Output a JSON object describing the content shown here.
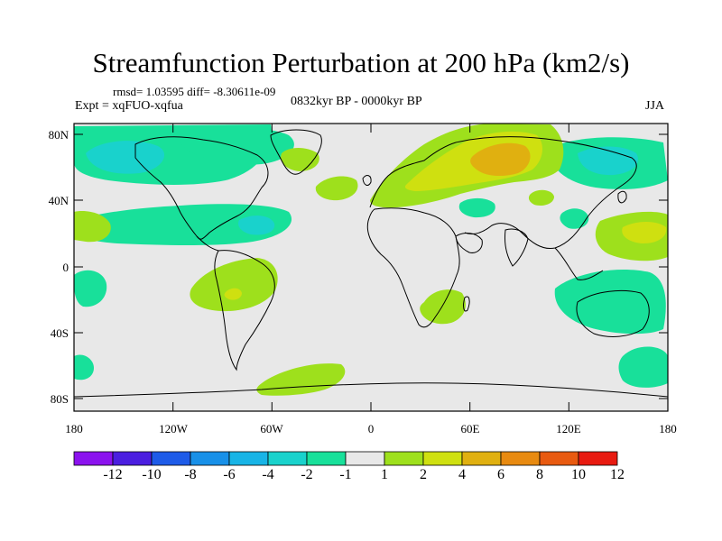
{
  "header": {
    "title": "Streamfunction Perturbation at 200 hPa (km2/s)",
    "stats": "rmsd= 1.03595 diff= -8.30611e-09",
    "experiment": "Expt = xqFUO-xqfua",
    "period": "0832kyr BP - 0000kyr BP",
    "season": "JJA"
  },
  "axes": {
    "lat_labels": [
      "80N",
      "40N",
      "0",
      "40S",
      "80S"
    ],
    "lon_labels": [
      "180",
      "120W",
      "60W",
      "0",
      "60E",
      "120E",
      "180"
    ]
  },
  "colorbar": {
    "labels": [
      "-12",
      "-10",
      "-8",
      "-6",
      "-4",
      "-2",
      "-1",
      "1",
      "2",
      "4",
      "6",
      "8",
      "10",
      "12"
    ],
    "colors": [
      "#8b12ee",
      "#4b1ee0",
      "#1e5be8",
      "#1890e8",
      "#18b4e6",
      "#19d2cc",
      "#18e09a",
      "#e8e8e8",
      "#9ee01c",
      "#cfe010",
      "#e0b010",
      "#e88a10",
      "#e85a10",
      "#e81a10"
    ]
  },
  "map": {
    "background_color": "#e8e8e8",
    "coast_color": "#000000"
  }
}
